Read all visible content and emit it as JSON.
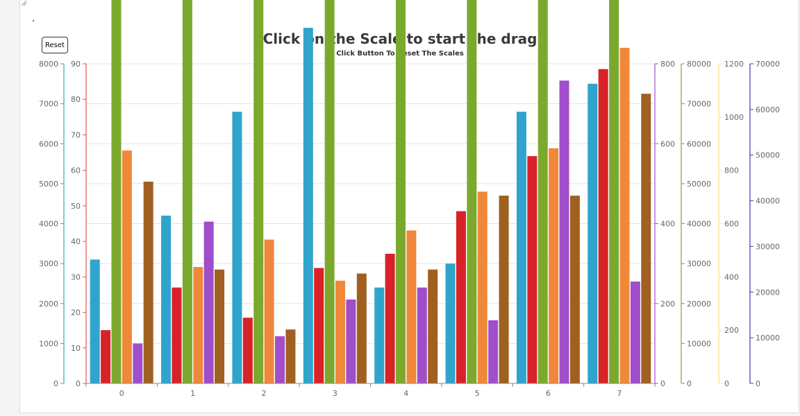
{
  "reset_label": "Reset",
  "chart_data": {
    "type": "bar",
    "title": "Click on the Scale to start the drag",
    "subtitle": "Click Button To Reset The Scales",
    "categories": [
      "0",
      "1",
      "2",
      "3",
      "4",
      "5",
      "6",
      "7"
    ],
    "series": [
      {
        "color": "#2fa4cc",
        "axis": 0,
        "values": [
          3100,
          4200,
          6800,
          8900,
          2400,
          3000,
          6800,
          7500
        ]
      },
      {
        "color": "#d92227",
        "axis": 1,
        "values": [
          15,
          27,
          18.5,
          32.5,
          36.5,
          48.5,
          64,
          88.5
        ]
      },
      {
        "color": "#7ba92e",
        "axis": 4,
        "values": [
          25000,
          25500,
          33000,
          22000,
          32000,
          43000,
          51500,
          73500
        ]
      },
      {
        "color": "#f0883a",
        "axis": 5,
        "values": [
          51000,
          25500,
          31500,
          22500,
          33500,
          42000,
          51500,
          73500
        ]
      },
      {
        "color": "#a04ec9",
        "axis": 2,
        "values": [
          100,
          405,
          118,
          210,
          240,
          158,
          758,
          255
        ]
      },
      {
        "color": "#a06020",
        "axis": 0,
        "values": [
          5050,
          2850,
          1350,
          2750,
          2850,
          4700,
          4700,
          7250
        ]
      }
    ],
    "axes": [
      {
        "side": "left",
        "color": "#26b5b0",
        "min": 0,
        "max": 8000,
        "ticks": [
          0,
          1000,
          2000,
          3000,
          4000,
          5000,
          6000,
          7000,
          8000
        ]
      },
      {
        "side": "left",
        "color": "#e85050",
        "min": 0,
        "max": 90,
        "ticks": [
          0,
          10,
          20,
          30,
          40,
          50,
          60,
          70,
          80,
          90
        ]
      },
      {
        "side": "right",
        "color": "#a04ec9",
        "min": 0,
        "max": 800,
        "ticks": [
          0,
          200,
          400,
          600,
          800
        ]
      },
      {
        "side": "right",
        "color": "#6ea83b",
        "min": 0,
        "max": 80000,
        "ticks": [
          0,
          10000,
          20000,
          30000,
          40000,
          50000,
          60000,
          70000,
          80000
        ]
      },
      {
        "side": "right",
        "color": "#f2e38a",
        "min": 0,
        "max": 1200,
        "ticks": [
          0,
          200,
          400,
          600,
          800,
          1000,
          1200
        ]
      },
      {
        "side": "right",
        "color": "#3a3aa8",
        "min": 0,
        "max": 70000,
        "ticks": [
          0,
          10000,
          20000,
          30000,
          40000,
          50000,
          60000,
          70000
        ]
      }
    ],
    "grid": true
  }
}
